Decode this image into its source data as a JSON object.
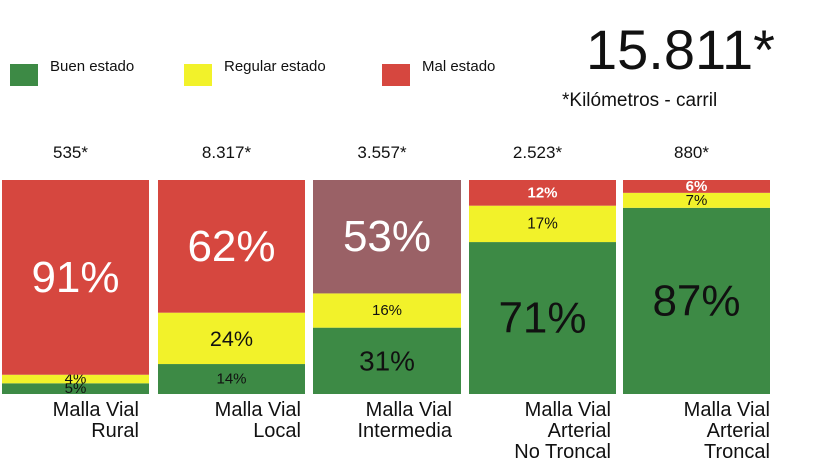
{
  "legend": {
    "good": "Buen estado",
    "regular": "Regular estado",
    "bad": "Mal estado"
  },
  "header": {
    "total": "15.811*",
    "unit": "*Kilómetros - carril"
  },
  "colors": {
    "good": "#3d8a45",
    "regular": "#f2f22a",
    "bad": "#d6473f",
    "bad_intermediate": "#9a6166"
  },
  "chart_data": {
    "type": "bar",
    "stacked": true,
    "normalized": true,
    "categories": [
      [
        "Malla Vial",
        "Rural"
      ],
      [
        "Malla Vial",
        "Local"
      ],
      [
        "Malla Vial",
        "Intermedia"
      ],
      [
        "Malla Vial",
        "Arterial",
        "No Troncal"
      ],
      [
        "Malla Vial",
        "Arterial",
        "Troncal"
      ]
    ],
    "totals": [
      "535*",
      "8.317*",
      "3.557*",
      "2.523*",
      "880*"
    ],
    "series": [
      {
        "name": "Buen estado",
        "values": [
          5,
          14,
          31,
          71,
          87
        ],
        "labels": [
          "5%",
          "14%",
          "31%",
          "71%",
          "87%"
        ]
      },
      {
        "name": "Regular estado",
        "values": [
          4,
          24,
          16,
          17,
          7
        ],
        "labels": [
          "4%",
          "24%",
          "16%",
          "17%",
          "7%"
        ]
      },
      {
        "name": "Mal estado",
        "values": [
          91,
          62,
          53,
          12,
          6
        ],
        "labels": [
          "91%",
          "62%",
          "53%",
          "12%",
          "6%"
        ]
      }
    ],
    "ylim": [
      0,
      100
    ]
  }
}
